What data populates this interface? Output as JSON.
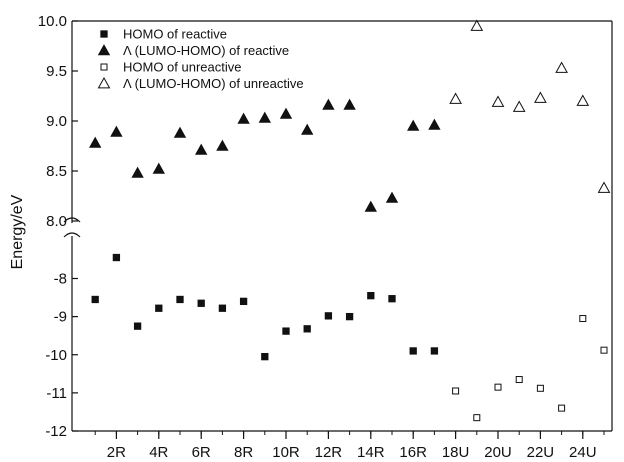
{
  "chart_data": {
    "type": "scatter",
    "ylabel": "Energy/eV",
    "xlabel": "",
    "x_tick_labels": [
      "2R",
      "4R",
      "6R",
      "8R",
      "10R",
      "12R",
      "14R",
      "16R",
      "18U",
      "20U",
      "22U",
      "24U"
    ],
    "x_tick_positions": [
      2,
      4,
      6,
      8,
      10,
      12,
      14,
      16,
      18,
      20,
      22,
      24
    ],
    "xlim": [
      0,
      25
    ],
    "broken_y_axis": true,
    "upper_panel": {
      "ylim": [
        8.0,
        10.0
      ],
      "y_ticks": [
        "8.0",
        "8.5",
        "9.0",
        "9.5",
        "10.0"
      ]
    },
    "lower_panel": {
      "ylim": [
        -12,
        -7.2
      ],
      "y_ticks": [
        "-8",
        "-9",
        "-10",
        "-11",
        "-12"
      ]
    },
    "series": [
      {
        "name": "HOMO of reactive",
        "marker": "filled-square",
        "panel": "lower",
        "x": [
          1,
          2,
          3,
          4,
          5,
          6,
          7,
          8,
          9,
          10,
          11,
          12,
          13,
          14,
          15,
          16,
          17
        ],
        "y": [
          -8.55,
          -7.45,
          -9.25,
          -8.78,
          -8.55,
          -8.65,
          -8.78,
          -8.6,
          -10.05,
          -9.38,
          -9.32,
          -8.98,
          -9.0,
          -8.45,
          -8.53,
          -9.9,
          -9.9
        ]
      },
      {
        "name": "Λ (LUMO-HOMO) of reactive",
        "marker": "filled-triangle",
        "panel": "upper",
        "x": [
          1,
          2,
          3,
          4,
          5,
          6,
          7,
          8,
          9,
          10,
          11,
          12,
          13,
          14,
          15,
          16,
          17
        ],
        "y": [
          8.78,
          8.89,
          8.48,
          8.52,
          8.88,
          8.71,
          8.75,
          9.02,
          9.03,
          9.07,
          8.91,
          9.16,
          9.16,
          8.14,
          8.23,
          8.95,
          8.96
        ]
      },
      {
        "name": "HOMO of unreactive",
        "marker": "open-square",
        "panel": "lower",
        "x": [
          18,
          19,
          20,
          21,
          22,
          23,
          24,
          25
        ],
        "y": [
          -10.95,
          -11.65,
          -10.85,
          -10.65,
          -10.88,
          -11.4,
          -9.05,
          -9.88
        ]
      },
      {
        "name": "Λ (LUMO-HOMO) of unreactive",
        "marker": "open-triangle",
        "panel": "upper",
        "x": [
          18,
          19,
          20,
          21,
          22,
          23,
          24,
          25
        ],
        "y": [
          9.22,
          9.95,
          9.19,
          9.14,
          9.23,
          9.53,
          9.2,
          8.33
        ]
      }
    ]
  }
}
